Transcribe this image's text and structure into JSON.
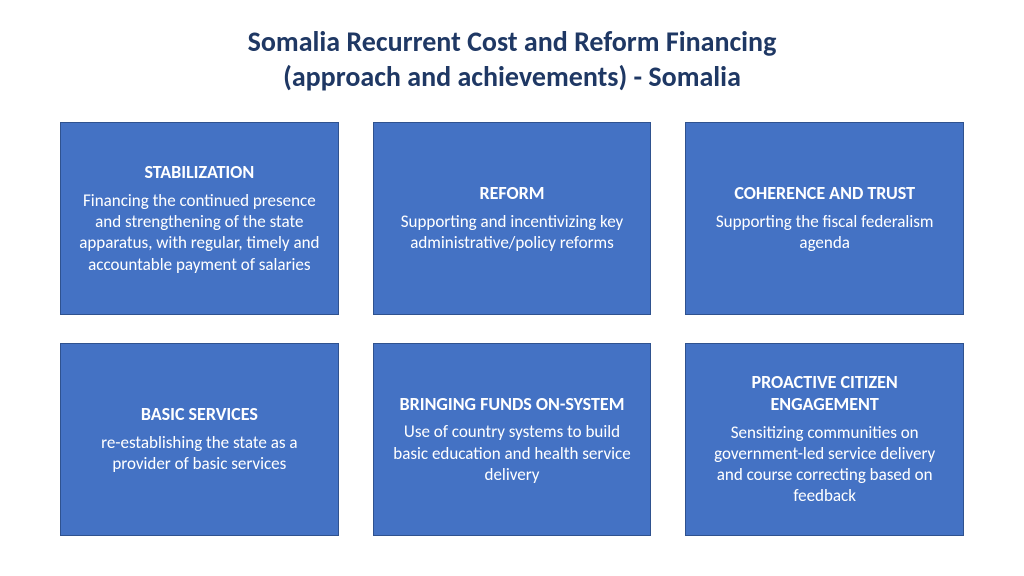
{
  "title": {
    "line1": "Somalia Recurrent Cost and Reform Financing",
    "line2": "(approach and achievements) - Somalia",
    "color": "#1f3864",
    "fontsize": 28
  },
  "grid": {
    "columns": 3,
    "rows": 2,
    "gap_h": 34,
    "gap_v": 28
  },
  "card_style": {
    "background": "#4472c4",
    "border_color": "#2f528f",
    "border_width": 1,
    "title_fontsize": 18,
    "body_fontsize": 17,
    "text_color": "#ffffff"
  },
  "cards": [
    {
      "title": "STABILIZATION",
      "body": "Financing the continued presence and strengthening of the state apparatus, with regular, timely and accountable payment of salaries"
    },
    {
      "title": "REFORM",
      "body": "Supporting and incentivizing key administrative/policy reforms"
    },
    {
      "title": "COHERENCE AND TRUST",
      "body": "Supporting the fiscal federalism agenda"
    },
    {
      "title": "BASIC SERVICES",
      "body": "re-establishing the state as a provider of basic services"
    },
    {
      "title": "BRINGING FUNDS ON-SYSTEM",
      "body": "Use of country systems to build basic education and health service delivery"
    },
    {
      "title": "PROACTIVE CITIZEN ENGAGEMENT",
      "body": "Sensitizing communities on government-led service delivery and course correcting based on feedback"
    }
  ]
}
